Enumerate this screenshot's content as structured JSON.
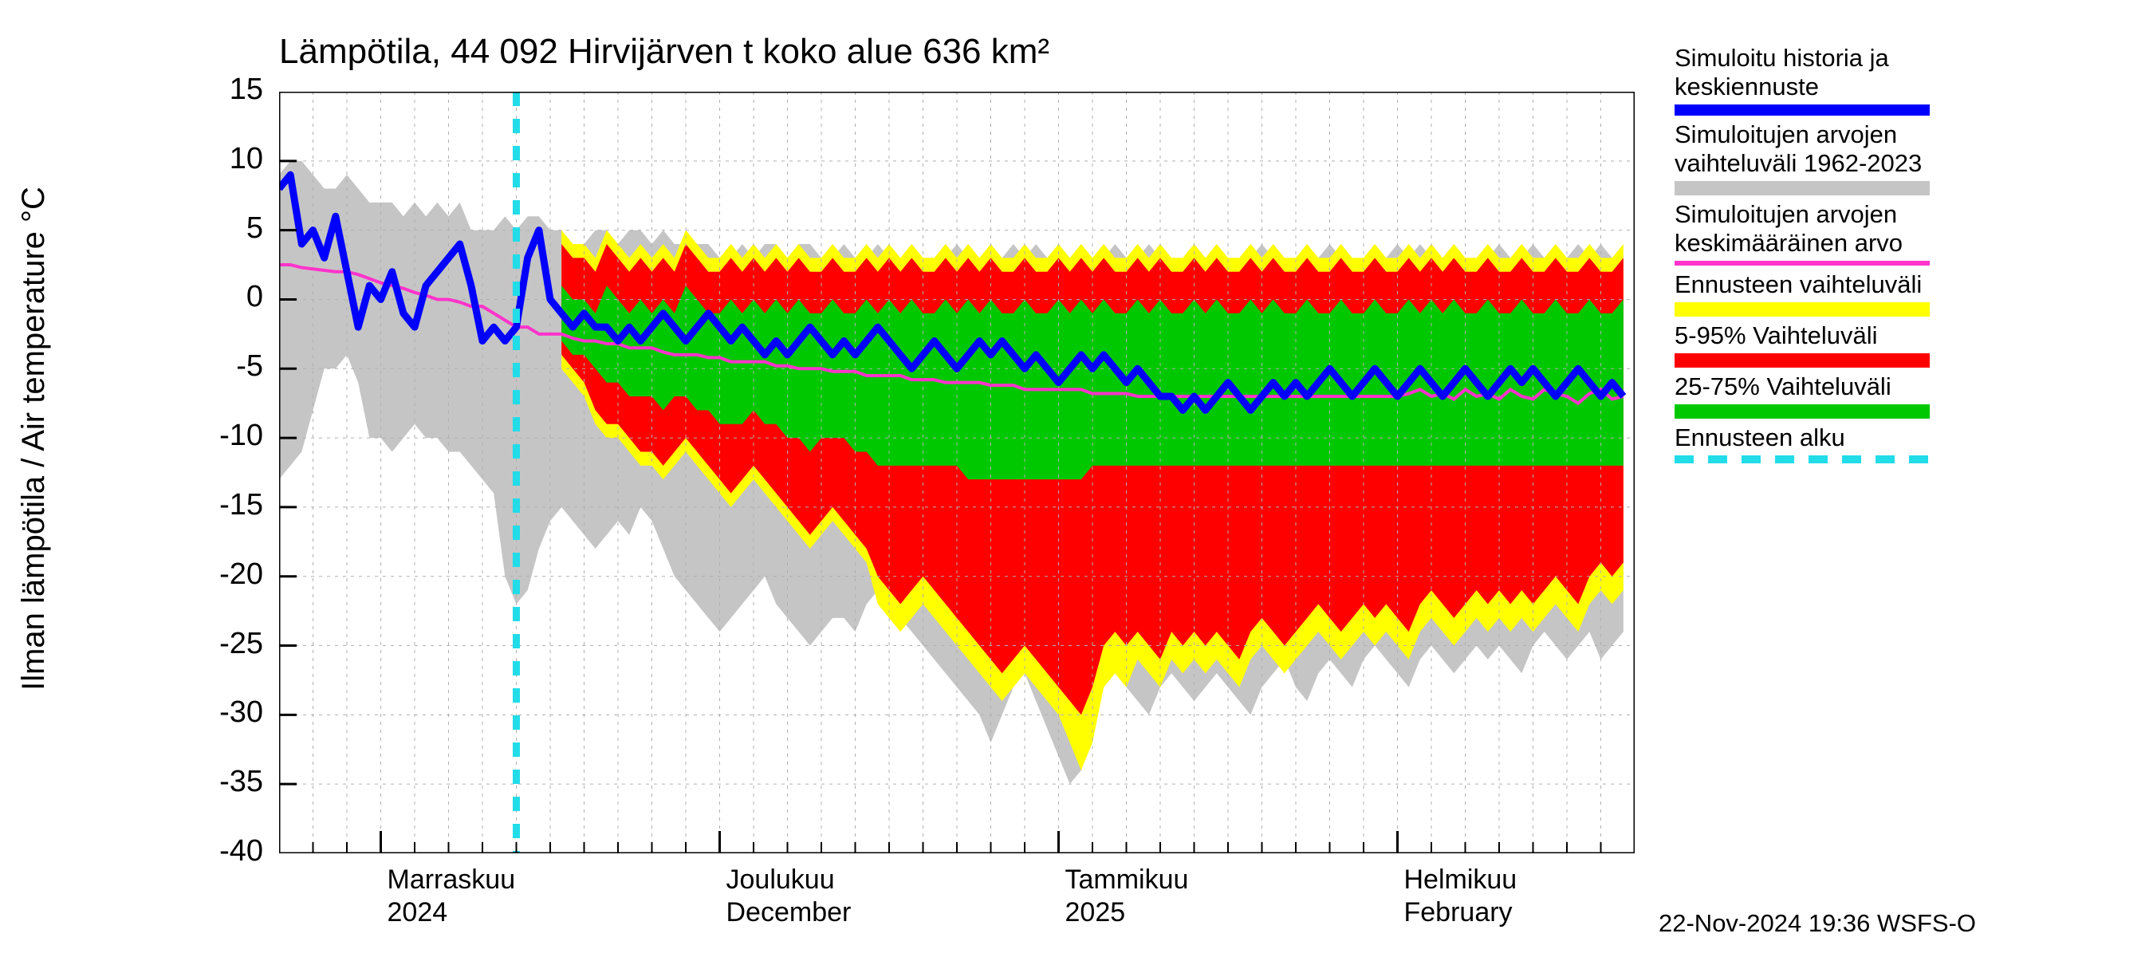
{
  "title": "Lämpötila, 44 092 Hirvijärven t koko alue 636 km²",
  "ylabel": "Ilman lämpötila / Air temperature    °C",
  "timestamp": "22-Nov-2024 19:36 WSFS-O",
  "chart": {
    "type": "filled-band-line",
    "background_color": "#ffffff",
    "grid_color": "#b0b0b0",
    "axis_color": "#000000",
    "xlim": [
      0,
      120
    ],
    "ylim": [
      -40,
      15
    ],
    "ytick_step": 5,
    "yticks": [
      15,
      10,
      5,
      0,
      -5,
      -10,
      -15,
      -20,
      -25,
      -30,
      -35,
      -40
    ],
    "forecast_start_x": 21,
    "forecast_line_color": "#22dce8",
    "x_major_ticks": [
      9,
      39,
      69,
      99
    ],
    "x_minor_step": 3,
    "x_labels": [
      {
        "x": 9,
        "line1": "Marraskuu",
        "line2": "2024"
      },
      {
        "x": 39,
        "line1": "Joulukuu",
        "line2": "December"
      },
      {
        "x": 69,
        "line1": "Tammikuu",
        "line2": "2025"
      },
      {
        "x": 99,
        "line1": "Helmikuu",
        "line2": "February"
      }
    ],
    "bands": {
      "gray": {
        "color": "#c5c5c5",
        "upper": [
          9,
          10,
          10,
          9,
          8,
          8,
          9,
          8,
          7,
          7,
          7,
          6,
          7,
          6,
          7,
          6,
          7,
          5,
          5,
          5,
          6,
          5,
          6,
          6,
          5,
          5,
          4,
          4,
          5,
          5,
          4,
          5,
          5,
          4,
          5,
          4,
          4,
          4,
          4,
          3,
          3,
          4,
          3,
          4,
          4,
          3,
          4,
          4,
          3,
          3,
          4,
          3,
          3,
          4,
          3,
          2,
          3,
          3,
          3,
          3,
          4,
          3,
          3,
          3,
          3,
          4,
          3,
          4,
          3,
          4,
          3,
          4,
          3,
          3,
          4,
          3,
          3,
          4,
          3,
          3,
          3,
          4,
          3,
          3,
          3,
          3,
          3,
          4,
          3,
          3,
          3,
          3,
          3,
          4,
          3,
          3,
          3,
          3,
          3,
          4,
          3,
          4,
          3,
          3,
          4,
          3,
          3,
          3,
          4,
          3,
          3,
          4,
          3,
          3,
          3,
          4,
          3,
          4,
          3,
          3
        ],
        "lower": [
          -13,
          -12,
          -11,
          -8,
          -5,
          -5,
          -4,
          -6,
          -10,
          -10,
          -11,
          -10,
          -9,
          -10,
          -10,
          -11,
          -11,
          -12,
          -13,
          -14,
          -20,
          -22,
          -21,
          -18,
          -16,
          -15,
          -16,
          -17,
          -18,
          -17,
          -16,
          -17,
          -15,
          -16,
          -18,
          -20,
          -21,
          -22,
          -23,
          -24,
          -23,
          -22,
          -21,
          -20,
          -22,
          -23,
          -24,
          -25,
          -24,
          -23,
          -23,
          -24,
          -22,
          -21,
          -22,
          -23,
          -24,
          -25,
          -26,
          -27,
          -28,
          -29,
          -30,
          -32,
          -30,
          -28,
          -27,
          -29,
          -31,
          -33,
          -35,
          -34,
          -30,
          -28,
          -27,
          -28,
          -29,
          -30,
          -28,
          -27,
          -28,
          -29,
          -28,
          -27,
          -28,
          -29,
          -30,
          -28,
          -27,
          -26,
          -28,
          -29,
          -27,
          -26,
          -27,
          -28,
          -26,
          -25,
          -26,
          -27,
          -28,
          -26,
          -25,
          -26,
          -27,
          -26,
          -25,
          -26,
          -25,
          -26,
          -27,
          -25,
          -24,
          -25,
          -26,
          -25,
          -24,
          -26,
          -25,
          -24
        ]
      },
      "yellow": {
        "color": "#ffff00",
        "start": 25,
        "upper": [
          5,
          4,
          4,
          3,
          5,
          4,
          3,
          4,
          3,
          4,
          3,
          5,
          4,
          3,
          3,
          4,
          3,
          4,
          3,
          4,
          3,
          4,
          3,
          3,
          4,
          3,
          3,
          4,
          3,
          4,
          3,
          4,
          3,
          3,
          4,
          3,
          4,
          3,
          4,
          3,
          3,
          4,
          3,
          3,
          4,
          3,
          4,
          3,
          4,
          3,
          3,
          4,
          3,
          4,
          3,
          3,
          4,
          3,
          4,
          3,
          3,
          4,
          3,
          4,
          3,
          3,
          4,
          3,
          3,
          4,
          3,
          3,
          4,
          3,
          3,
          4,
          3,
          4,
          3,
          4,
          3,
          3,
          4,
          3,
          3,
          4,
          3,
          3,
          4,
          3,
          3,
          4,
          3,
          3,
          4
        ],
        "lower": [
          -5,
          -6,
          -7,
          -9,
          -10,
          -10,
          -11,
          -12,
          -12,
          -13,
          -12,
          -11,
          -12,
          -13,
          -14,
          -15,
          -14,
          -13,
          -14,
          -15,
          -16,
          -17,
          -18,
          -17,
          -16,
          -17,
          -18,
          -19,
          -22,
          -23,
          -24,
          -23,
          -22,
          -23,
          -24,
          -25,
          -26,
          -27,
          -28,
          -29,
          -28,
          -27,
          -28,
          -29,
          -30,
          -32,
          -34,
          -32,
          -28,
          -27,
          -28,
          -26,
          -27,
          -28,
          -26,
          -27,
          -26,
          -27,
          -26,
          -27,
          -28,
          -26,
          -25,
          -26,
          -27,
          -26,
          -25,
          -24,
          -25,
          -26,
          -25,
          -24,
          -25,
          -24,
          -25,
          -26,
          -24,
          -23,
          -24,
          -25,
          -24,
          -23,
          -24,
          -23,
          -24,
          -23,
          -24,
          -23,
          -22,
          -23,
          -24,
          -22,
          -21,
          -22,
          -21
        ]
      },
      "red": {
        "color": "#ff0000",
        "start": 25,
        "upper": [
          4,
          3,
          3,
          2,
          4,
          3,
          2,
          3,
          2,
          3,
          2,
          4,
          3,
          2,
          2,
          3,
          2,
          3,
          2,
          3,
          2,
          3,
          2,
          2,
          3,
          2,
          2,
          3,
          2,
          3,
          2,
          3,
          2,
          2,
          3,
          2,
          3,
          2,
          3,
          2,
          2,
          3,
          2,
          2,
          3,
          2,
          3,
          2,
          3,
          2,
          2,
          3,
          2,
          3,
          2,
          2,
          3,
          2,
          3,
          2,
          2,
          3,
          2,
          3,
          2,
          2,
          3,
          2,
          2,
          3,
          2,
          2,
          3,
          2,
          2,
          3,
          2,
          3,
          2,
          3,
          2,
          2,
          3,
          2,
          2,
          3,
          2,
          2,
          3,
          2,
          2,
          3,
          2,
          2,
          3
        ],
        "lower": [
          -4,
          -5,
          -6,
          -8,
          -9,
          -9,
          -10,
          -11,
          -11,
          -12,
          -11,
          -10,
          -11,
          -12,
          -13,
          -14,
          -13,
          -12,
          -13,
          -14,
          -15,
          -16,
          -17,
          -16,
          -15,
          -16,
          -17,
          -18,
          -20,
          -21,
          -22,
          -21,
          -20,
          -21,
          -22,
          -23,
          -24,
          -25,
          -26,
          -27,
          -26,
          -25,
          -26,
          -27,
          -28,
          -29,
          -30,
          -28,
          -25,
          -24,
          -25,
          -24,
          -25,
          -26,
          -24,
          -25,
          -24,
          -25,
          -24,
          -25,
          -26,
          -24,
          -23,
          -24,
          -25,
          -24,
          -23,
          -22,
          -23,
          -24,
          -23,
          -22,
          -23,
          -22,
          -23,
          -24,
          -22,
          -21,
          -22,
          -23,
          -22,
          -21,
          -22,
          -21,
          -22,
          -21,
          -22,
          -21,
          -20,
          -21,
          -22,
          -20,
          -19,
          -20,
          -19
        ]
      },
      "green": {
        "color": "#00c800",
        "start": 25,
        "upper": [
          1,
          0,
          0,
          -1,
          1,
          0,
          -1,
          0,
          -1,
          0,
          -1,
          1,
          0,
          -1,
          -1,
          0,
          -1,
          0,
          -1,
          0,
          -1,
          0,
          -1,
          -1,
          0,
          -1,
          -1,
          0,
          -1,
          0,
          -1,
          0,
          -1,
          -1,
          0,
          -1,
          0,
          -1,
          0,
          -1,
          -1,
          0,
          -1,
          -1,
          0,
          -1,
          0,
          -1,
          0,
          -1,
          -1,
          0,
          -1,
          0,
          -1,
          -1,
          0,
          -1,
          0,
          -1,
          -1,
          0,
          -1,
          0,
          -1,
          -1,
          0,
          -1,
          -1,
          0,
          -1,
          -1,
          0,
          -1,
          -1,
          0,
          -1,
          0,
          -1,
          0,
          -1,
          -1,
          0,
          -1,
          -1,
          0,
          -1,
          -1,
          0,
          -1,
          -1,
          0,
          -1,
          -1,
          0
        ],
        "lower": [
          -3,
          -4,
          -4,
          -5,
          -6,
          -6,
          -7,
          -7,
          -7,
          -8,
          -7,
          -7,
          -8,
          -8,
          -9,
          -9,
          -9,
          -8,
          -9,
          -9,
          -10,
          -10,
          -11,
          -10,
          -10,
          -10,
          -11,
          -11,
          -12,
          -12,
          -12,
          -12,
          -12,
          -12,
          -12,
          -12,
          -13,
          -13,
          -13,
          -13,
          -13,
          -13,
          -13,
          -13,
          -13,
          -13,
          -13,
          -12,
          -12,
          -12,
          -12,
          -12,
          -12,
          -12,
          -12,
          -12,
          -12,
          -12,
          -12,
          -12,
          -12,
          -12,
          -12,
          -12,
          -12,
          -12,
          -12,
          -12,
          -12,
          -12,
          -12,
          -12,
          -12,
          -12,
          -12,
          -12,
          -12,
          -12,
          -12,
          -12,
          -12,
          -12,
          -12,
          -12,
          -12,
          -12,
          -12,
          -12,
          -12,
          -12,
          -12,
          -12,
          -12,
          -12,
          -12
        ]
      }
    },
    "lines": {
      "magenta": {
        "color": "#ff33cc",
        "width": 4,
        "y": [
          2.5,
          2.5,
          2.3,
          2.2,
          2.1,
          2,
          2,
          1.8,
          1.5,
          1.2,
          1,
          0.8,
          0.5,
          0.3,
          0,
          0,
          -0.2,
          -0.5,
          -0.5,
          -1,
          -1.5,
          -2,
          -2,
          -2.5,
          -2.5,
          -2.5,
          -2.8,
          -3,
          -3,
          -3.2,
          -3.2,
          -3.5,
          -3.5,
          -3.5,
          -3.8,
          -4,
          -4,
          -4,
          -4.2,
          -4.2,
          -4.5,
          -4.5,
          -4.5,
          -4.5,
          -4.8,
          -4.8,
          -5,
          -5,
          -5,
          -5.2,
          -5.2,
          -5.2,
          -5.5,
          -5.5,
          -5.5,
          -5.5,
          -5.8,
          -5.8,
          -5.8,
          -6,
          -6,
          -6,
          -6,
          -6.2,
          -6.2,
          -6.2,
          -6.5,
          -6.5,
          -6.5,
          -6.5,
          -6.5,
          -6.5,
          -6.8,
          -6.8,
          -6.8,
          -6.8,
          -7,
          -7,
          -7,
          -7,
          -7,
          -7,
          -7,
          -7,
          -7,
          -7,
          -7,
          -7,
          -7,
          -7,
          -7,
          -7,
          -7,
          -7,
          -7,
          -7,
          -7,
          -7,
          -7,
          -7,
          -6.8,
          -6.5,
          -7,
          -6.8,
          -7.2,
          -6.5,
          -7,
          -6.8,
          -7.2,
          -6.5,
          -7,
          -7.2,
          -6.5,
          -6.8,
          -7,
          -7.5,
          -6.8,
          -6.5,
          -7.2,
          -7
        ]
      },
      "blue": {
        "color": "#0000ff",
        "width": 9,
        "y": [
          8,
          9,
          4,
          5,
          3,
          6,
          2,
          -2,
          1,
          0,
          2,
          -1,
          -2,
          1,
          2,
          3,
          4,
          1,
          -3,
          -2,
          -3,
          -2,
          3,
          5,
          0,
          -1,
          -2,
          -1,
          -2,
          -2,
          -3,
          -2,
          -3,
          -2,
          -1,
          -2,
          -3,
          -2,
          -1,
          -2,
          -3,
          -2,
          -3,
          -4,
          -3,
          -4,
          -3,
          -2,
          -3,
          -4,
          -3,
          -4,
          -3,
          -2,
          -3,
          -4,
          -5,
          -4,
          -3,
          -4,
          -5,
          -4,
          -3,
          -4,
          -3,
          -4,
          -5,
          -4,
          -5,
          -6,
          -5,
          -4,
          -5,
          -4,
          -5,
          -6,
          -5,
          -6,
          -7,
          -7,
          -8,
          -7,
          -8,
          -7,
          -6,
          -7,
          -8,
          -7,
          -6,
          -7,
          -6,
          -7,
          -6,
          -5,
          -6,
          -7,
          -6,
          -5,
          -6,
          -7,
          -6,
          -5,
          -6,
          -7,
          -6,
          -5,
          -6,
          -7,
          -6,
          -5,
          -6,
          -5,
          -6,
          -7,
          -6,
          -5,
          -6,
          -7,
          -6,
          -7
        ]
      }
    }
  },
  "legend": [
    {
      "label1": "Simuloitu historia ja",
      "label2": "keskiennuste",
      "color": "#0000ff",
      "h": 14
    },
    {
      "label1": "Simuloitujen arvojen",
      "label2": "vaihteluväli 1962-2023",
      "color": "#c5c5c5",
      "h": 18
    },
    {
      "label1": "Simuloitujen arvojen",
      "label2": "keskimääräinen arvo",
      "color": "#ff33cc",
      "h": 6
    },
    {
      "label1": "Ennusteen vaihteluväli",
      "label2": "",
      "color": "#ffff00",
      "h": 18
    },
    {
      "label1": "5-95% Vaihteluväli",
      "label2": "",
      "color": "#ff0000",
      "h": 18
    },
    {
      "label1": "25-75% Vaihteluväli",
      "label2": "",
      "color": "#00c800",
      "h": 18
    },
    {
      "label1": "Ennusteen alku",
      "label2": "",
      "color": "dashed",
      "h": 10
    }
  ]
}
